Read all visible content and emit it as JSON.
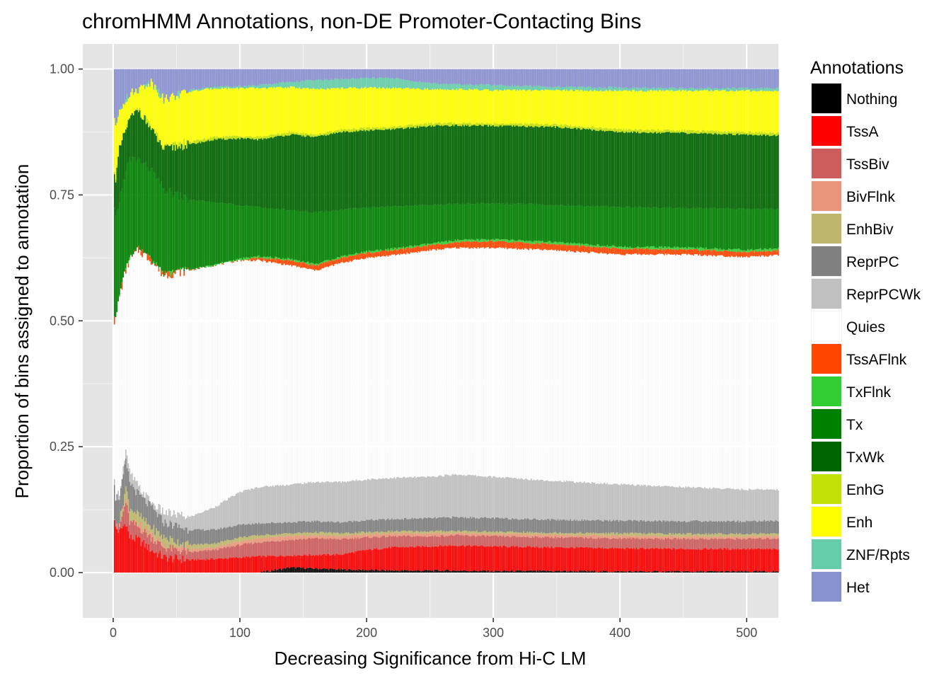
{
  "chart_data": {
    "type": "bar",
    "stacked": true,
    "title": "chromHMM Annotations, non-DE Promoter-Contacting Bins",
    "xlabel": "Decreasing Significance from Hi-C LM",
    "ylabel": "Proportion of bins assigned to annotation",
    "xlim": [
      -24,
      525
    ],
    "ylim": [
      -0.09,
      1.05
    ],
    "x_ticks": [
      0,
      100,
      200,
      300,
      400,
      500
    ],
    "x_tick_labels": [
      "0",
      "100",
      "200",
      "300",
      "400",
      "500"
    ],
    "y_ticks": [
      0.0,
      0.25,
      0.5,
      0.75,
      1.0
    ],
    "y_tick_labels": [
      "0.00",
      "0.25",
      "0.50",
      "0.75",
      "1.00"
    ],
    "grid": true,
    "legend_title": "Annotations",
    "legend_position": "right",
    "n_bars": 525,
    "series": [
      {
        "name": "Nothing",
        "color": "#000000"
      },
      {
        "name": "TssA",
        "color": "#FF0000"
      },
      {
        "name": "TssBiv",
        "color": "#CD5C5C"
      },
      {
        "name": "BivFlnk",
        "color": "#E9967A"
      },
      {
        "name": "EnhBiv",
        "color": "#BDB76B"
      },
      {
        "name": "ReprPC",
        "color": "#808080"
      },
      {
        "name": "ReprPCWk",
        "color": "#C0C0C0"
      },
      {
        "name": "Quies",
        "color": "#FFFFFF"
      },
      {
        "name": "TssAFlnk",
        "color": "#FF4500"
      },
      {
        "name": "TxFlnk",
        "color": "#32CD32"
      },
      {
        "name": "Tx",
        "color": "#008000"
      },
      {
        "name": "TxWk",
        "color": "#006400"
      },
      {
        "name": "EnhG",
        "color": "#C2E105"
      },
      {
        "name": "Enh",
        "color": "#FFFF00"
      },
      {
        "name": "ZNF/Rpts",
        "color": "#66CDAA"
      },
      {
        "name": "Het",
        "color": "#8A91D0"
      }
    ],
    "cumulative_top_keypoints": {
      "x": [
        1,
        2,
        5,
        10,
        13,
        20,
        30,
        40,
        60,
        80,
        100,
        115,
        140,
        160,
        180,
        200,
        220,
        250,
        270,
        300,
        350,
        400,
        450,
        500,
        525
      ],
      "Nothing": [
        0,
        0,
        0,
        0,
        0,
        0,
        0,
        0,
        0,
        0,
        0,
        0,
        0.01,
        0.008,
        0.006,
        0.005,
        0.004,
        0.004,
        0.004,
        0.003,
        0.003,
        0.002,
        0.002,
        0.002,
        0.002
      ],
      "TssA": [
        0.1,
        0.09,
        0.08,
        0.1,
        0.07,
        0.065,
        0.045,
        0.03,
        0.025,
        0.027,
        0.03,
        0.032,
        0.034,
        0.035,
        0.036,
        0.045,
        0.05,
        0.052,
        0.054,
        0.052,
        0.05,
        0.048,
        0.047,
        0.047,
        0.046
      ],
      "TssBiv": [
        0.1,
        0.09,
        0.09,
        0.14,
        0.1,
        0.09,
        0.07,
        0.05,
        0.04,
        0.045,
        0.055,
        0.06,
        0.065,
        0.068,
        0.066,
        0.07,
        0.072,
        0.072,
        0.074,
        0.072,
        0.07,
        0.068,
        0.067,
        0.067,
        0.068
      ],
      "BivFlnk": [
        0.1,
        0.09,
        0.09,
        0.15,
        0.11,
        0.1,
        0.075,
        0.055,
        0.045,
        0.05,
        0.062,
        0.068,
        0.072,
        0.074,
        0.073,
        0.076,
        0.078,
        0.078,
        0.079,
        0.077,
        0.075,
        0.073,
        0.072,
        0.072,
        0.073
      ],
      "EnhBiv": [
        0.1,
        0.09,
        0.1,
        0.17,
        0.13,
        0.115,
        0.09,
        0.07,
        0.055,
        0.058,
        0.07,
        0.074,
        0.078,
        0.08,
        0.078,
        0.08,
        0.082,
        0.082,
        0.083,
        0.081,
        0.079,
        0.078,
        0.077,
        0.077,
        0.078
      ],
      "ReprPC": [
        0.18,
        0.15,
        0.15,
        0.22,
        0.18,
        0.155,
        0.13,
        0.1,
        0.085,
        0.085,
        0.095,
        0.098,
        0.1,
        0.102,
        0.1,
        0.104,
        0.106,
        0.108,
        0.11,
        0.108,
        0.105,
        0.103,
        0.102,
        0.102,
        0.103
      ],
      "ReprPCWk": [
        0.18,
        0.15,
        0.16,
        0.24,
        0.2,
        0.17,
        0.14,
        0.12,
        0.11,
        0.13,
        0.16,
        0.17,
        0.175,
        0.18,
        0.18,
        0.185,
        0.188,
        0.19,
        0.195,
        0.19,
        0.182,
        0.175,
        0.17,
        0.165,
        0.165
      ],
      "Quies": [
        0.5,
        0.5,
        0.55,
        0.6,
        0.62,
        0.64,
        0.62,
        0.59,
        0.6,
        0.61,
        0.62,
        0.62,
        0.61,
        0.6,
        0.615,
        0.625,
        0.63,
        0.64,
        0.645,
        0.645,
        0.64,
        0.632,
        0.632,
        0.627,
        0.63
      ],
      "TssAFlnk": [
        0.5,
        0.5,
        0.55,
        0.6,
        0.62,
        0.64,
        0.62,
        0.59,
        0.6,
        0.61,
        0.62,
        0.625,
        0.62,
        0.61,
        0.625,
        0.635,
        0.64,
        0.65,
        0.656,
        0.658,
        0.652,
        0.643,
        0.642,
        0.637,
        0.64
      ],
      "TxFlnk": [
        0.5,
        0.5,
        0.55,
        0.6,
        0.62,
        0.64,
        0.62,
        0.59,
        0.6,
        0.612,
        0.623,
        0.628,
        0.623,
        0.613,
        0.628,
        0.638,
        0.643,
        0.653,
        0.66,
        0.662,
        0.656,
        0.647,
        0.646,
        0.641,
        0.644
      ],
      "Tx": [
        0.72,
        0.7,
        0.74,
        0.8,
        0.82,
        0.82,
        0.8,
        0.76,
        0.74,
        0.735,
        0.73,
        0.725,
        0.72,
        0.715,
        0.72,
        0.725,
        0.727,
        0.73,
        0.732,
        0.733,
        0.73,
        0.726,
        0.724,
        0.722,
        0.722
      ],
      "TxWk": [
        0.8,
        0.78,
        0.84,
        0.88,
        0.9,
        0.92,
        0.88,
        0.84,
        0.85,
        0.86,
        0.862,
        0.86,
        0.87,
        0.865,
        0.875,
        0.878,
        0.88,
        0.887,
        0.888,
        0.887,
        0.885,
        0.875,
        0.873,
        0.87,
        0.868
      ],
      "EnhG": [
        0.8,
        0.78,
        0.84,
        0.88,
        0.9,
        0.92,
        0.885,
        0.845,
        0.855,
        0.865,
        0.867,
        0.865,
        0.875,
        0.87,
        0.88,
        0.883,
        0.885,
        0.892,
        0.893,
        0.892,
        0.89,
        0.88,
        0.878,
        0.875,
        0.873
      ],
      "Enh": [
        0.9,
        0.88,
        0.92,
        0.94,
        0.95,
        0.96,
        0.975,
        0.94,
        0.955,
        0.962,
        0.962,
        0.962,
        0.964,
        0.96,
        0.962,
        0.963,
        0.962,
        0.96,
        0.96,
        0.958,
        0.958,
        0.957,
        0.957,
        0.957,
        0.957
      ],
      "ZNF/Rpts": [
        0.9,
        0.88,
        0.92,
        0.94,
        0.95,
        0.96,
        0.975,
        0.94,
        0.958,
        0.965,
        0.966,
        0.968,
        0.975,
        0.978,
        0.98,
        0.982,
        0.982,
        0.972,
        0.97,
        0.968,
        0.965,
        0.963,
        0.962,
        0.962,
        0.962
      ],
      "Het": [
        1,
        1,
        1,
        1,
        1,
        1,
        1,
        1,
        1,
        1,
        1,
        1,
        1,
        1,
        1,
        1,
        1,
        1,
        1,
        1,
        1,
        1,
        1,
        1,
        1
      ]
    }
  }
}
